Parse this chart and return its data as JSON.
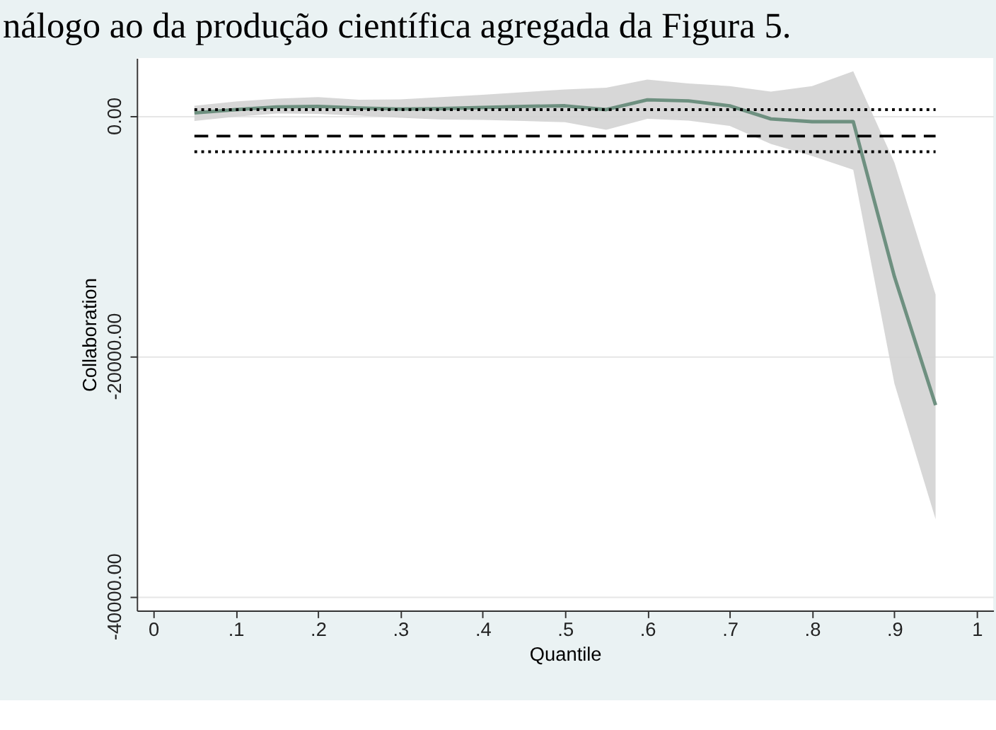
{
  "chart_data": {
    "type": "line",
    "annotations": [
      "nálogo ao da produção científica agregada da Figura 5."
    ],
    "xlabel": "Quantile",
    "ylabel": "Collaboration",
    "xlim": [
      -0.02,
      1.02
    ],
    "ylim": [
      -41200,
      4800
    ],
    "xticks": [
      {
        "value": 0,
        "label": "0"
      },
      {
        "value": 0.1,
        "label": ".1"
      },
      {
        "value": 0.2,
        "label": ".2"
      },
      {
        "value": 0.3,
        "label": ".3"
      },
      {
        "value": 0.4,
        "label": ".4"
      },
      {
        "value": 0.5,
        "label": ".5"
      },
      {
        "value": 0.6,
        "label": ".6"
      },
      {
        "value": 0.7,
        "label": ".7"
      },
      {
        "value": 0.8,
        "label": ".8"
      },
      {
        "value": 0.9,
        "label": ".9"
      },
      {
        "value": 1,
        "label": "1"
      }
    ],
    "yticks": [
      {
        "value": -40000,
        "label": "-40000.00"
      },
      {
        "value": -20000,
        "label": "-20000.00"
      },
      {
        "value": 0,
        "label": "0.00"
      }
    ],
    "grid": "y",
    "series": [
      {
        "color": "#6e9080",
        "line_style": "solid",
        "x": [
          0.05,
          0.1,
          0.15,
          0.2,
          0.25,
          0.3,
          0.35,
          0.4,
          0.45,
          0.5,
          0.55,
          0.6,
          0.65,
          0.7,
          0.75,
          0.8,
          0.85,
          0.9,
          0.95
        ],
        "values": [
          230,
          500,
          730,
          770,
          640,
          550,
          590,
          680,
          770,
          820,
          500,
          1320,
          1230,
          820,
          -270,
          -500,
          -500,
          -13400,
          -24100
        ],
        "lower": [
          -450,
          -90,
          180,
          140,
          0,
          -180,
          -320,
          -360,
          -450,
          -550,
          -1180,
          -270,
          -410,
          -860,
          -2360,
          -3360,
          -4500,
          -22300,
          -33600
        ],
        "upper": [
          820,
          1180,
          1410,
          1550,
          1320,
          1360,
          1550,
          1730,
          1960,
          2180,
          2320,
          3000,
          2680,
          2460,
          2000,
          2460,
          3690,
          -3900,
          -14900
        ]
      },
      {
        "color": "#000000",
        "line_style": "dashed",
        "x": [
          0.05,
          0.95
        ],
        "values": [
          -1700,
          -1700
        ]
      },
      {
        "color": "#000000",
        "line_style": "dotted",
        "x": [
          0.05,
          0.95
        ],
        "values": [
          500,
          500
        ]
      },
      {
        "color": "#000000",
        "line_style": "dotted",
        "x": [
          0.05,
          0.95
        ],
        "values": [
          -3000,
          -3000
        ]
      }
    ]
  }
}
